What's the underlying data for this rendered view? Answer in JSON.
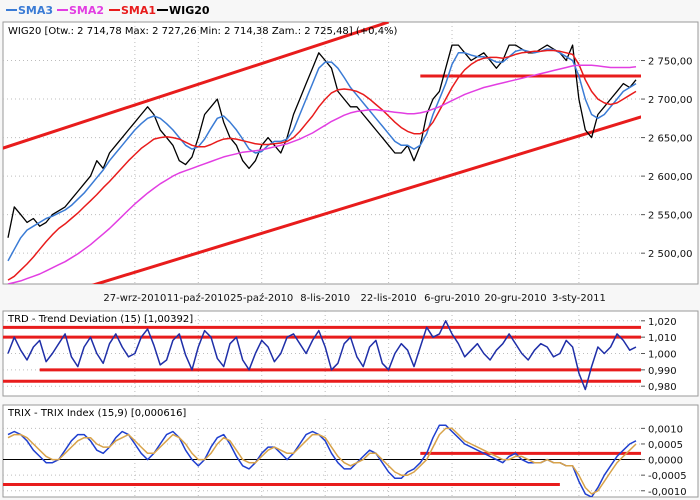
{
  "legend": [
    {
      "label": "SMA3",
      "color": "#3a7bd5"
    },
    {
      "label": "SMA2",
      "color": "#e23ee2"
    },
    {
      "label": "SMA1",
      "color": "#e81c1c"
    },
    {
      "label": "WIG20",
      "color": "#000000"
    }
  ],
  "panes": {
    "main": {
      "title": "WIG20 [Otw.: 2 714,78  Max: 2 727,26  Min: 2 714,38  Zam.: 2 725,48] (+0,4%)"
    },
    "trd": {
      "title": "TRD - Trend Deviation (15) [1,00392]"
    },
    "trix": {
      "title": "TRIX - TRIX Index (15,9) [0,000616]"
    }
  },
  "chart_data": [
    {
      "type": "line",
      "pane": "main",
      "ylim": [
        2460,
        2800
      ],
      "yticks": [
        2500,
        2550,
        2600,
        2650,
        2700,
        2750
      ],
      "ytick_labels": [
        "2 500,00",
        "2 550,00",
        "2 600,00",
        "2 650,00",
        "2 700,00",
        "2 750,00"
      ],
      "xticks": [
        {
          "label": "27-wrz-2010",
          "i": 20
        },
        {
          "label": "11-paź-2010",
          "i": 30
        },
        {
          "label": "25-paź-2010",
          "i": 40
        },
        {
          "label": "8-lis-2010",
          "i": 50
        },
        {
          "label": "22-lis-2010",
          "i": 60
        },
        {
          "label": "6-gru-2010",
          "i": 70
        },
        {
          "label": "20-gru-2010",
          "i": 80
        },
        {
          "label": "3-sty-2011",
          "i": 90
        }
      ],
      "n": 100,
      "series": [
        {
          "name": "WIG20",
          "color": "#000000",
          "values": [
            2520,
            2560,
            2550,
            2540,
            2545,
            2535,
            2540,
            2550,
            2555,
            2560,
            2570,
            2580,
            2590,
            2600,
            2620,
            2610,
            2630,
            2640,
            2650,
            2660,
            2670,
            2680,
            2690,
            2680,
            2660,
            2650,
            2640,
            2620,
            2615,
            2625,
            2650,
            2680,
            2690,
            2700,
            2670,
            2650,
            2640,
            2620,
            2610,
            2620,
            2640,
            2650,
            2640,
            2630,
            2650,
            2680,
            2700,
            2720,
            2740,
            2760,
            2750,
            2740,
            2710,
            2700,
            2690,
            2690,
            2680,
            2670,
            2660,
            2650,
            2640,
            2630,
            2630,
            2640,
            2620,
            2640,
            2680,
            2700,
            2710,
            2740,
            2770,
            2770,
            2760,
            2750,
            2755,
            2760,
            2750,
            2740,
            2750,
            2770,
            2770,
            2765,
            2760,
            2760,
            2765,
            2770,
            2765,
            2760,
            2750,
            2770,
            2700,
            2660,
            2650,
            2680,
            2690,
            2700,
            2710,
            2720,
            2715,
            2725
          ]
        },
        {
          "name": "SMA3",
          "color": "#3a7bd5",
          "values": [
            2490,
            2505,
            2520,
            2530,
            2535,
            2540,
            2545,
            2548,
            2552,
            2556,
            2562,
            2570,
            2578,
            2588,
            2598,
            2608,
            2620,
            2630,
            2640,
            2650,
            2660,
            2668,
            2675,
            2678,
            2675,
            2668,
            2660,
            2650,
            2640,
            2635,
            2638,
            2648,
            2662,
            2675,
            2678,
            2670,
            2660,
            2648,
            2635,
            2630,
            2632,
            2640,
            2645,
            2645,
            2648,
            2660,
            2680,
            2700,
            2720,
            2740,
            2748,
            2748,
            2740,
            2728,
            2715,
            2705,
            2695,
            2685,
            2675,
            2665,
            2655,
            2645,
            2640,
            2640,
            2635,
            2640,
            2655,
            2680,
            2700,
            2720,
            2745,
            2760,
            2760,
            2757,
            2755,
            2755,
            2752,
            2748,
            2748,
            2755,
            2762,
            2764,
            2762,
            2760,
            2762,
            2765,
            2764,
            2760,
            2755,
            2750,
            2730,
            2700,
            2680,
            2675,
            2680,
            2690,
            2700,
            2710,
            2715,
            2720
          ]
        },
        {
          "name": "SMA1",
          "color": "#e81c1c",
          "values": [
            2465,
            2470,
            2478,
            2486,
            2495,
            2505,
            2515,
            2524,
            2532,
            2538,
            2545,
            2552,
            2560,
            2568,
            2576,
            2585,
            2593,
            2602,
            2611,
            2620,
            2628,
            2636,
            2642,
            2648,
            2650,
            2651,
            2650,
            2648,
            2644,
            2640,
            2638,
            2638,
            2641,
            2645,
            2648,
            2649,
            2648,
            2646,
            2644,
            2642,
            2641,
            2641,
            2642,
            2643,
            2645,
            2650,
            2658,
            2668,
            2678,
            2690,
            2700,
            2708,
            2712,
            2713,
            2712,
            2710,
            2706,
            2700,
            2693,
            2686,
            2678,
            2670,
            2663,
            2658,
            2655,
            2655,
            2660,
            2670,
            2685,
            2700,
            2715,
            2728,
            2738,
            2745,
            2750,
            2753,
            2754,
            2754,
            2753,
            2755,
            2758,
            2760,
            2761,
            2762,
            2762,
            2763,
            2763,
            2762,
            2760,
            2758,
            2745,
            2725,
            2710,
            2700,
            2695,
            2693,
            2695,
            2700,
            2705,
            2710
          ]
        },
        {
          "name": "SMA2",
          "color": "#e23ee2",
          "values": [
            2460,
            2462,
            2464,
            2467,
            2470,
            2473,
            2477,
            2481,
            2485,
            2489,
            2494,
            2499,
            2505,
            2511,
            2518,
            2525,
            2532,
            2540,
            2548,
            2556,
            2564,
            2571,
            2578,
            2584,
            2590,
            2595,
            2600,
            2604,
            2607,
            2610,
            2613,
            2616,
            2619,
            2622,
            2625,
            2627,
            2629,
            2631,
            2632,
            2633,
            2634,
            2636,
            2638,
            2640,
            2642,
            2645,
            2648,
            2652,
            2656,
            2661,
            2666,
            2671,
            2675,
            2679,
            2682,
            2684,
            2685,
            2686,
            2686,
            2685,
            2684,
            2683,
            2682,
            2681,
            2681,
            2682,
            2684,
            2687,
            2690,
            2694,
            2698,
            2702,
            2706,
            2709,
            2712,
            2715,
            2717,
            2719,
            2721,
            2723,
            2725,
            2727,
            2729,
            2731,
            2733,
            2735,
            2737,
            2739,
            2741,
            2743,
            2744,
            2744,
            2744,
            2743,
            2742,
            2741,
            2741,
            2741,
            2741,
            2742
          ]
        }
      ],
      "annotations": [
        {
          "name": "upper-channel",
          "color": "#e81c1c",
          "points": [
            [
              -5,
              2625
            ],
            [
              60,
              2800
            ]
          ]
        },
        {
          "name": "lower-channel",
          "color": "#e81c1c",
          "points": [
            [
              10,
              2450
            ],
            [
              105,
              2690
            ]
          ]
        },
        {
          "name": "resistance",
          "color": "#e81c1c",
          "points": [
            [
              65,
              2730
            ],
            [
              100,
              2730
            ]
          ]
        }
      ]
    },
    {
      "type": "line",
      "pane": "trd",
      "ylim": [
        0.974,
        1.026
      ],
      "yticks": [
        0.98,
        0.99,
        1.0,
        1.01,
        1.02
      ],
      "ytick_labels": [
        "0,980",
        "0,990",
        "1,000",
        "1,010",
        "1,020"
      ],
      "n": 100,
      "series": [
        {
          "name": "TRD",
          "color": "#1f2fa8",
          "values": [
            1.0,
            1.01,
            1.002,
            0.996,
            1.004,
            1.008,
            0.995,
            1.0,
            1.006,
            1.012,
            0.998,
            0.992,
            1.004,
            1.01,
            1.0,
            0.994,
            1.006,
            1.012,
            1.004,
            0.998,
            1.0,
            1.01,
            1.015,
            1.005,
            0.993,
            0.996,
            1.008,
            1.012,
            0.999,
            0.99,
            1.004,
            1.014,
            1.01,
            0.997,
            0.992,
            1.006,
            1.01,
            0.996,
            0.99,
            1.0,
            1.008,
            1.004,
            0.995,
            1.0,
            1.01,
            1.012,
            1.006,
            1.0,
            1.008,
            1.014,
            1.004,
            0.99,
            0.994,
            1.006,
            1.01,
            0.998,
            0.992,
            1.004,
            1.008,
            0.994,
            0.99,
            1.0,
            1.006,
            1.002,
            0.992,
            1.004,
            1.016,
            1.01,
            1.012,
            1.02,
            1.012,
            1.006,
            0.998,
            1.002,
            1.006,
            1.0,
            0.996,
            1.002,
            1.006,
            1.012,
            1.006,
            1.0,
            0.996,
            1.002,
            1.006,
            1.004,
            0.998,
            1.0,
            1.008,
            1.004,
            0.988,
            0.978,
            0.992,
            1.004,
            1.0,
            1.004,
            1.012,
            1.008,
            1.002,
            1.004
          ]
        }
      ],
      "annotations": [
        {
          "name": "trd-upper-1",
          "color": "#e81c1c",
          "points": [
            [
              -5,
              1.016
            ],
            [
              105,
              1.016
            ]
          ]
        },
        {
          "name": "trd-upper-2",
          "color": "#e81c1c",
          "points": [
            [
              -5,
              1.01
            ],
            [
              105,
              1.01
            ]
          ]
        },
        {
          "name": "trd-lower-1",
          "color": "#e81c1c",
          "points": [
            [
              5,
              0.99
            ],
            [
              105,
              0.99
            ]
          ]
        },
        {
          "name": "trd-lower-2",
          "color": "#e81c1c",
          "points": [
            [
              -5,
              0.983
            ],
            [
              105,
              0.983
            ]
          ]
        }
      ]
    },
    {
      "type": "line",
      "pane": "trix",
      "ylim": [
        -0.0012,
        0.0013
      ],
      "yticks": [
        -0.001,
        -0.0005,
        0.0,
        0.0005,
        0.001
      ],
      "ytick_labels": [
        "-0,0010",
        "-0,0005",
        "0,0000",
        "0,0005",
        "0,0010"
      ],
      "n": 100,
      "series": [
        {
          "name": "TRIX",
          "color": "#1f3fcf",
          "values": [
            0.0008,
            0.0009,
            0.0008,
            0.0006,
            0.0003,
            0.0001,
            -0.0001,
            -0.0001,
            0.0,
            0.0003,
            0.0006,
            0.0008,
            0.0008,
            0.0006,
            0.0003,
            0.0002,
            0.0004,
            0.0007,
            0.0009,
            0.0008,
            0.0005,
            0.0002,
            0.0,
            0.0002,
            0.0005,
            0.0008,
            0.0009,
            0.0007,
            0.0003,
            0.0,
            -0.0002,
            0.0,
            0.0004,
            0.0007,
            0.0008,
            0.0005,
            0.0001,
            -0.0002,
            -0.0003,
            -0.0001,
            0.0002,
            0.0004,
            0.0004,
            0.0002,
            0.0,
            0.0002,
            0.0005,
            0.0008,
            0.0009,
            0.0008,
            0.0006,
            0.0002,
            -0.0001,
            -0.0003,
            -0.0003,
            -0.0001,
            0.0001,
            0.0003,
            0.0002,
            -0.0001,
            -0.0004,
            -0.0006,
            -0.0006,
            -0.0004,
            -0.0003,
            -0.0001,
            0.0002,
            0.0007,
            0.0011,
            0.0011,
            0.0009,
            0.0007,
            0.0005,
            0.0004,
            0.0003,
            0.0002,
            0.0001,
            0.0,
            -0.0001,
            0.0001,
            0.0002,
            0.0,
            -0.0001,
            -0.0001,
            -0.0001,
            0.0,
            -0.0001,
            -0.0001,
            -0.0002,
            -0.0002,
            -0.0007,
            -0.0011,
            -0.0012,
            -0.0009,
            -0.0005,
            -0.0002,
            0.0001,
            0.0003,
            0.0005,
            0.0006
          ]
        },
        {
          "name": "Signal",
          "color": "#d8a34a",
          "values": [
            0.0007,
            0.0008,
            0.0008,
            0.0007,
            0.0005,
            0.0003,
            0.0001,
            0.0,
            0.0,
            0.0002,
            0.0004,
            0.0006,
            0.0007,
            0.0007,
            0.0005,
            0.0004,
            0.0004,
            0.0006,
            0.0007,
            0.0008,
            0.0006,
            0.0004,
            0.0002,
            0.0002,
            0.0004,
            0.0006,
            0.0008,
            0.0007,
            0.0005,
            0.0002,
            0.0,
            0.0,
            0.0002,
            0.0005,
            0.0007,
            0.0006,
            0.0003,
            0.0,
            -0.0001,
            -0.0001,
            0.0001,
            0.0003,
            0.0004,
            0.0003,
            0.0002,
            0.0002,
            0.0004,
            0.0006,
            0.0008,
            0.0008,
            0.0007,
            0.0004,
            0.0001,
            -0.0001,
            -0.0002,
            -0.0001,
            0.0,
            0.0002,
            0.0002,
            0.0,
            -0.0002,
            -0.0004,
            -0.0005,
            -0.0005,
            -0.0004,
            -0.0002,
            0.0,
            0.0004,
            0.0008,
            0.001,
            0.001,
            0.0008,
            0.0006,
            0.0005,
            0.0004,
            0.0003,
            0.0002,
            0.0001,
            0.0,
            0.0,
            0.0001,
            0.0001,
            0.0,
            -0.0001,
            -0.0001,
            0.0,
            -0.0001,
            -0.0001,
            -0.0002,
            -0.0002,
            -0.0005,
            -0.0009,
            -0.0011,
            -0.001,
            -0.0007,
            -0.0004,
            -0.0001,
            0.0001,
            0.0003,
            0.0005
          ]
        }
      ],
      "annotations": [
        {
          "name": "trix-upper",
          "color": "#e81c1c",
          "points": [
            [
              65,
              0.0002
            ],
            [
              105,
              0.0002
            ]
          ]
        },
        {
          "name": "trix-lower",
          "color": "#e81c1c",
          "points": [
            [
              -5,
              -0.0008
            ],
            [
              87,
              -0.0008
            ]
          ]
        }
      ]
    }
  ]
}
